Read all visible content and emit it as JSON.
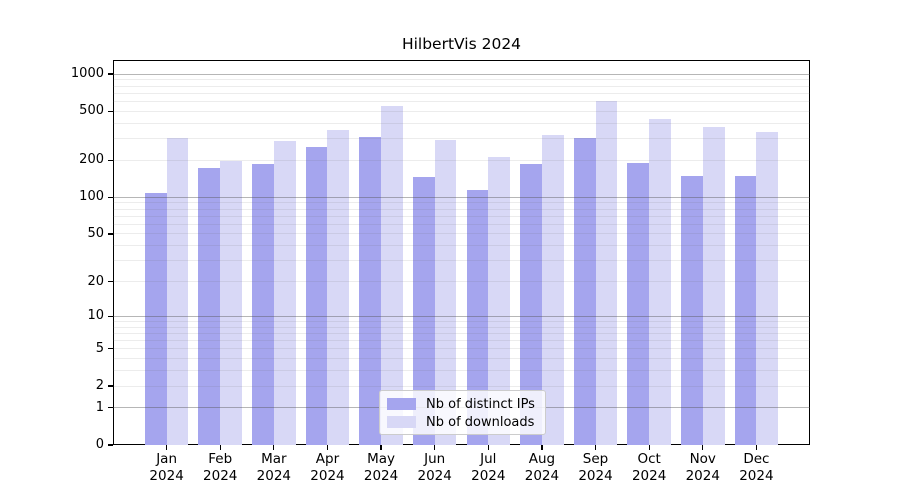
{
  "chart_data": {
    "type": "bar",
    "title": "HilbertVis 2024",
    "categories": [
      "Jan",
      "Feb",
      "Mar",
      "Apr",
      "May",
      "Jun",
      "Jul",
      "Aug",
      "Sep",
      "Oct",
      "Nov",
      "Dec"
    ],
    "year_label": "2024",
    "series": [
      {
        "name": "Nb of distinct IPs",
        "color": "#a5a5ee",
        "values": [
          108,
          172,
          188,
          258,
          311,
          147,
          114,
          188,
          301,
          191,
          150,
          148
        ]
      },
      {
        "name": "Nb of downloads",
        "color": "#d8d8f6",
        "values": [
          301,
          199,
          285,
          352,
          555,
          295,
          212,
          321,
          610,
          433,
          374,
          342
        ]
      }
    ],
    "xlabel": "",
    "ylabel": "",
    "y_ticks": [
      0,
      1,
      2,
      5,
      10,
      20,
      50,
      100,
      200,
      500,
      1000
    ],
    "scale": "log1p",
    "ylim": [
      0,
      1300
    ],
    "grid": "horizontal major+minor",
    "legend_position": "lower center",
    "axis_color": "#000000",
    "major_grid_values": [
      1,
      10,
      100,
      1000
    ]
  }
}
